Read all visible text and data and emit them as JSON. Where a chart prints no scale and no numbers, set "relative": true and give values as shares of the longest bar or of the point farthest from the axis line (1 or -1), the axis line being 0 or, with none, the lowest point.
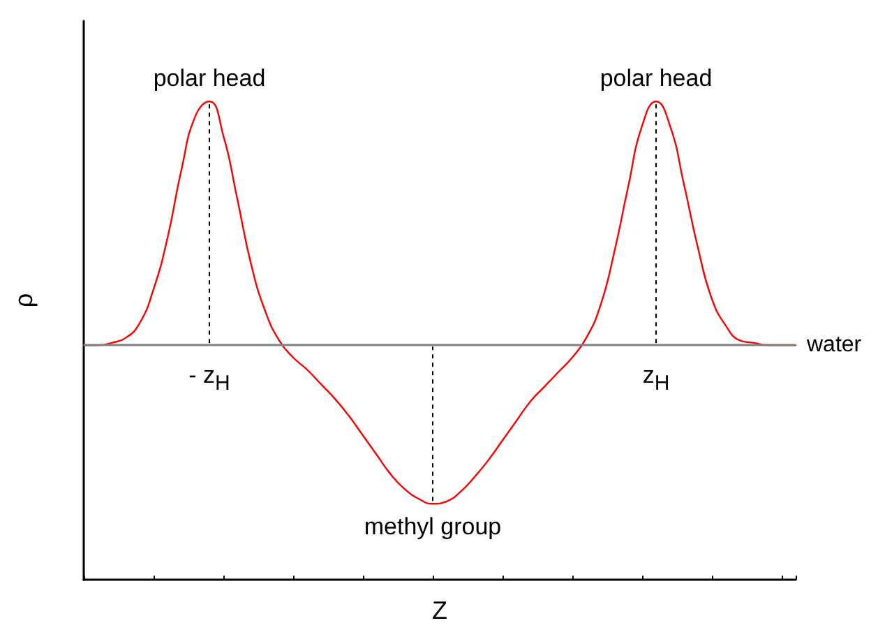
{
  "chart_data": {
    "type": "line",
    "relative": true,
    "xlabel": "Z",
    "ylabel": "ρ",
    "color": "#ff0000",
    "marker": "none",
    "line_style": "solid",
    "grid": false,
    "categories": [
      null,
      null,
      null,
      null,
      null,
      null,
      null,
      null,
      null,
      null,
      null,
      null,
      null,
      null,
      null,
      null,
      null,
      null,
      null,
      null,
      null,
      null,
      null,
      null,
      null,
      null,
      null,
      null,
      null,
      null,
      null,
      null,
      null,
      null,
      null,
      null,
      null,
      null,
      null,
      null,
      null,
      null,
      null,
      null,
      null,
      null,
      null,
      null,
      null,
      null,
      null,
      null
    ],
    "values": [
      0,
      0,
      0.01,
      0.03,
      0.09,
      0.23,
      0.44,
      0.72,
      0.94,
      1,
      0.86,
      0.6,
      0.33,
      0.14,
      0.02,
      -0.05,
      -0.1,
      -0.16,
      -0.22,
      -0.29,
      -0.37,
      -0.45,
      -0.53,
      -0.59,
      -0.63,
      -0.65,
      -0.64,
      -0.6,
      -0.54,
      -0.47,
      -0.39,
      -0.31,
      -0.23,
      -0.17,
      -0.11,
      -0.05,
      0.03,
      0.16,
      0.38,
      0.65,
      0.9,
      1,
      0.9,
      0.66,
      0.4,
      0.19,
      0.08,
      0.02,
      0.01,
      0,
      0,
      0
    ],
    "ref_lines": [
      {
        "axis": "y",
        "value": 0,
        "label": "water",
        "color": "#808080"
      }
    ],
    "annotations": [
      "polar head",
      "- z$_{H}$",
      "methyl group",
      "z$_{H}$",
      "polar head"
    ]
  }
}
